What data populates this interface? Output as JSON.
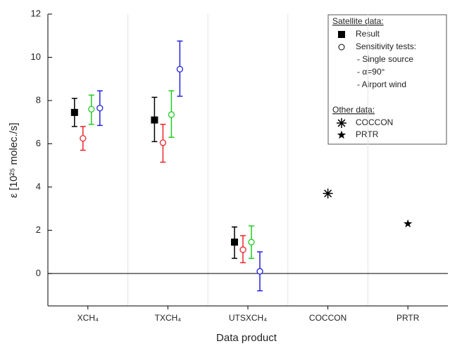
{
  "chart_data": {
    "type": "errorbar",
    "x_label": "Data product",
    "y_label": "ε [10²⁵ molec./s]",
    "categories": [
      "XCH₄",
      "TXCH₄",
      "UTSXCH₄",
      "COCCON",
      "PRTR"
    ],
    "ylim": [
      -1.5,
      12
    ],
    "yticks": [
      0,
      2,
      4,
      6,
      8,
      10,
      12
    ],
    "legend": {
      "satellite_heading": "Satellite data:",
      "sensitivity_heading": "Sensitivity tests:",
      "other_heading": "Other data:",
      "position": "upper right"
    },
    "series": [
      {
        "name": "Result",
        "color": "#000000",
        "marker": "square",
        "values": [
          7.45,
          7.1,
          1.45,
          null,
          null
        ],
        "lower": [
          6.8,
          6.1,
          0.7,
          null,
          null
        ],
        "upper": [
          8.1,
          8.15,
          2.15,
          null,
          null
        ]
      },
      {
        "name": "- Single source",
        "color": "#e8262a",
        "marker": "circle",
        "values": [
          6.25,
          6.05,
          1.1,
          null,
          null
        ],
        "lower": [
          5.7,
          5.15,
          0.5,
          null,
          null
        ],
        "upper": [
          6.8,
          6.9,
          1.75,
          null,
          null
        ]
      },
      {
        "name": "- α=90°",
        "color": "#22cc22",
        "marker": "circle",
        "values": [
          7.6,
          7.35,
          1.45,
          null,
          null
        ],
        "lower": [
          6.9,
          6.3,
          0.7,
          null,
          null
        ],
        "upper": [
          8.25,
          8.45,
          2.2,
          null,
          null
        ]
      },
      {
        "name": "- Airport wind",
        "color": "#2222dd",
        "marker": "circle",
        "values": [
          7.65,
          9.45,
          0.1,
          null,
          null
        ],
        "lower": [
          6.85,
          8.2,
          -0.8,
          null,
          null
        ],
        "upper": [
          8.45,
          10.75,
          1.0,
          null,
          null
        ]
      },
      {
        "name": "COCCON",
        "color": "#000000",
        "marker": "asterisk",
        "values": [
          null,
          null,
          null,
          3.7,
          null
        ]
      },
      {
        "name": "PRTR",
        "color": "#000000",
        "marker": "star",
        "values": [
          null,
          null,
          null,
          null,
          2.3
        ]
      }
    ]
  }
}
